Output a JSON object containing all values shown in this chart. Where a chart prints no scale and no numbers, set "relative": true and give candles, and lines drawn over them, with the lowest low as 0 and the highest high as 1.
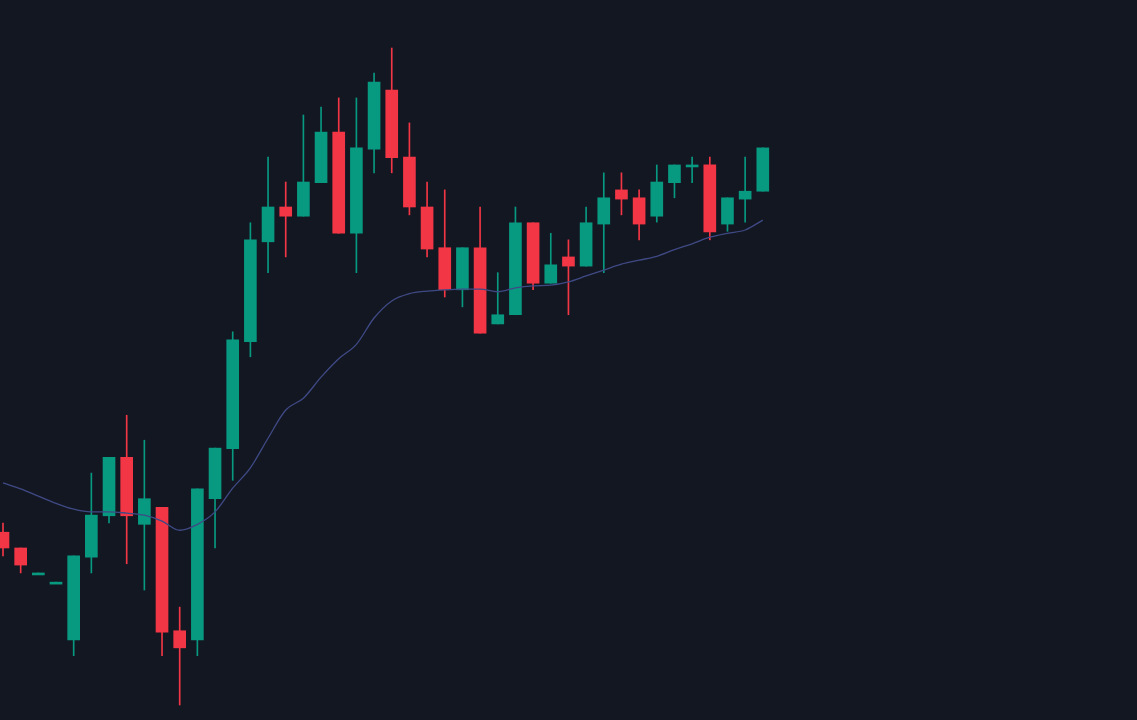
{
  "chart_data": {
    "type": "candlestick",
    "relative": true,
    "categories": [
      null,
      null,
      null,
      null,
      null,
      null,
      null,
      null,
      null,
      null,
      null,
      null,
      null,
      null,
      null,
      null,
      null,
      null,
      null,
      null,
      null,
      null,
      null,
      null,
      null,
      null,
      null,
      null,
      null,
      null,
      null,
      null,
      null,
      null,
      null,
      null,
      null,
      null,
      null,
      null,
      null,
      null,
      null,
      null
    ],
    "ohlc": [
      [
        0.263,
        0.277,
        0.227,
        0.239
      ],
      [
        0.239,
        0.239,
        0.201,
        0.213
      ],
      [
        0.201,
        0.201,
        0.201,
        0.201
      ],
      [
        0.187,
        0.187,
        0.187,
        0.187
      ],
      [
        0.099,
        0.227,
        0.075,
        0.227
      ],
      [
        0.225,
        0.353,
        0.201,
        0.289
      ],
      [
        0.288,
        0.377,
        0.277,
        0.377
      ],
      [
        0.377,
        0.441,
        0.215,
        0.288
      ],
      [
        0.275,
        0.403,
        0.175,
        0.314
      ],
      [
        0.301,
        0.301,
        0.075,
        0.111
      ],
      [
        0.113,
        0.149,
        0,
        0.087
      ],
      [
        0.099,
        0.329,
        0.075,
        0.329
      ],
      [
        0.314,
        0.391,
        0.239,
        0.391
      ],
      [
        0.39,
        0.568,
        0.342,
        0.556
      ],
      [
        0.553,
        0.734,
        0.53,
        0.708
      ],
      [
        0.705,
        0.834,
        0.658,
        0.758
      ],
      [
        0.758,
        0.796,
        0.682,
        0.744
      ],
      [
        0.744,
        0.898,
        0.744,
        0.796
      ],
      [
        0.795,
        0.91,
        0.795,
        0.872
      ],
      [
        0.872,
        0.924,
        0.718,
        0.718
      ],
      [
        0.718,
        0.924,
        0.658,
        0.848
      ],
      [
        0.846,
        0.962,
        0.81,
        0.948
      ],
      [
        0.936,
        1,
        0.81,
        0.833
      ],
      [
        0.834,
        0.886,
        0.746,
        0.758
      ],
      [
        0.758,
        0.796,
        0.682,
        0.694
      ],
      [
        0.696,
        0.784,
        0.621,
        0.632
      ],
      [
        0.632,
        0.696,
        0.606,
        0.696
      ],
      [
        0.696,
        0.758,
        0.566,
        0.566
      ],
      [
        0.58,
        0.658,
        0.58,
        0.594
      ],
      [
        0.594,
        0.758,
        0.594,
        0.734
      ],
      [
        0.734,
        0.734,
        0.632,
        0.642
      ],
      [
        0.642,
        0.718,
        0.642,
        0.67
      ],
      [
        0.682,
        0.708,
        0.594,
        0.668
      ],
      [
        0.668,
        0.758,
        0.668,
        0.734
      ],
      [
        0.732,
        0.81,
        0.658,
        0.772
      ],
      [
        0.784,
        0.81,
        0.746,
        0.77
      ],
      [
        0.772,
        0.784,
        0.708,
        0.732
      ],
      [
        0.744,
        0.822,
        0.735,
        0.796
      ],
      [
        0.795,
        0.822,
        0.772,
        0.822
      ],
      [
        0.822,
        0.834,
        0.795,
        0.822
      ],
      [
        0.822,
        0.834,
        0.708,
        0.72
      ],
      [
        0.732,
        0.772,
        0.721,
        0.772
      ],
      [
        0.77,
        0.834,
        0.735,
        0.782
      ],
      [
        0.782,
        0.848,
        0.782,
        0.848
      ]
    ],
    "colors": [
      "#f23645",
      "#f23645",
      "#089981",
      "#089981",
      "#089981",
      "#089981",
      "#089981",
      "#f23645",
      "#089981",
      "#f23645",
      "#f23645",
      "#089981",
      "#089981",
      "#089981",
      "#089981",
      "#089981",
      "#f23645",
      "#089981",
      "#089981",
      "#f23645",
      "#089981",
      "#089981",
      "#f23645",
      "#f23645",
      "#f23645",
      "#f23645",
      "#089981",
      "#f23645",
      "#089981",
      "#089981",
      "#f23645",
      "#089981",
      "#f23645",
      "#089981",
      "#089981",
      "#f23645",
      "#f23645",
      "#089981",
      "#089981",
      "#089981",
      "#f23645",
      "#089981",
      "#089981",
      "#089981"
    ],
    "series": [
      {
        "type": "line",
        "color": "#3f4a85",
        "values": [
          0.338,
          0.329,
          0.318,
          0.307,
          0.298,
          0.294,
          0.294,
          0.292,
          0.289,
          0.28,
          0.266,
          0.275,
          0.294,
          0.33,
          0.361,
          0.406,
          0.449,
          0.467,
          0.499,
          0.527,
          0.549,
          0.589,
          0.615,
          0.626,
          0.63,
          0.632,
          0.633,
          0.633,
          0.629,
          0.635,
          0.638,
          0.639,
          0.644,
          0.653,
          0.662,
          0.671,
          0.677,
          0.683,
          0.693,
          0.702,
          0.712,
          0.718,
          0.723,
          0.738
        ]
      }
    ]
  }
}
